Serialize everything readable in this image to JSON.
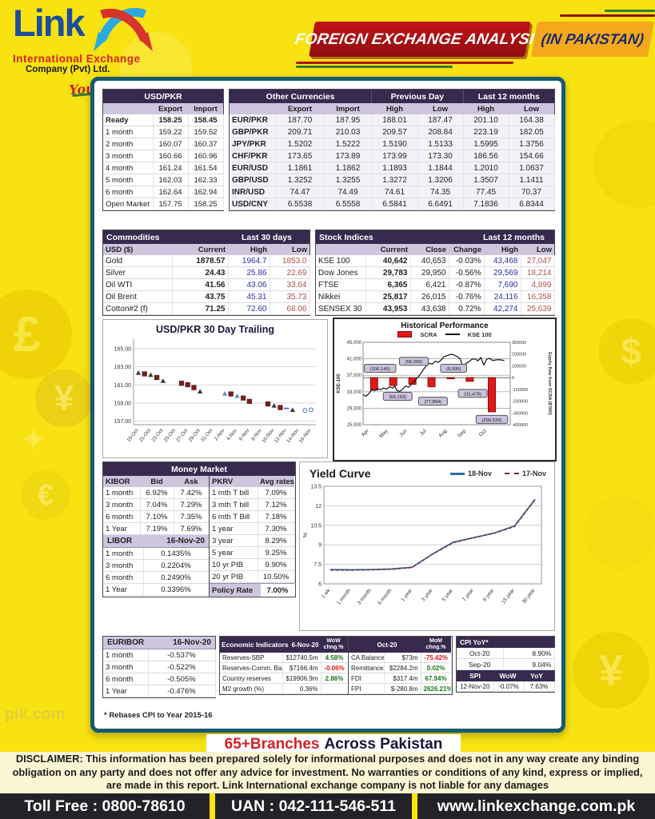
{
  "colors": {
    "yellow": "#F8E212",
    "purple": "#382A4E",
    "lavender": "#CEC5DF",
    "teal_border": "#175A70",
    "red_banner": "#A50F14",
    "orange_banner": "#F5A81C",
    "high_blue": "#2B31A5",
    "low_red": "#B0524B"
  },
  "logo": {
    "name": "Link",
    "line1": "International Exchange",
    "line2": "Company (Pvt) Ltd.",
    "tagline": "Your Money Matters"
  },
  "banner": {
    "title": "FOREIGN EXCHANGE ANALYSIS",
    "region": "(IN PAKISTAN)"
  },
  "fx": {
    "usdpkr": {
      "title": "USD/PKR",
      "cols": [
        "",
        "Export",
        "Import"
      ],
      "rows": [
        [
          "Ready",
          "158.25",
          "158.45"
        ],
        [
          "1 month",
          "159.22",
          "159.52"
        ],
        [
          "2 month",
          "160.07",
          "160.37"
        ],
        [
          "3 month",
          "160.66",
          "160.96"
        ],
        [
          "4 month",
          "161.24",
          "161.54"
        ],
        [
          "5 month",
          "162.03",
          "162.33"
        ],
        [
          "6 month",
          "162.64",
          "162.94"
        ],
        [
          "Open Market",
          "157.75",
          "158.25"
        ]
      ]
    },
    "others": {
      "title": "Other Currencies",
      "group2": "Previous Day",
      "group3": "Last 12 months",
      "cols": [
        "",
        "Export",
        "Import",
        "High",
        "Low",
        "High",
        "Low"
      ],
      "rows": [
        [
          "EUR/PKR",
          "187.70",
          "187.95",
          "188.01",
          "187.47",
          "201.10",
          "164.38"
        ],
        [
          "GBP/PKR",
          "209.71",
          "210.03",
          "209.57",
          "208.84",
          "223.19",
          "182.05"
        ],
        [
          "JPY/PKR",
          "1.5202",
          "1.5222",
          "1.5190",
          "1.5133",
          "1.5995",
          "1.3756"
        ],
        [
          "CHF/PKR",
          "173.65",
          "173.89",
          "173.99",
          "173.30",
          "186.56",
          "154.66"
        ],
        [
          "EUR/USD",
          "1.1861",
          "1.1862",
          "1.1893",
          "1.1844",
          "1.2010",
          "1.0637"
        ],
        [
          "GBP/USD",
          "1.3252",
          "1.3255",
          "1.3272",
          "1.3206",
          "1.3507",
          "1.1411"
        ],
        [
          "INR/USD",
          "74.47",
          "74.49",
          "74.61",
          "74.35",
          "77.45",
          "70.37"
        ],
        [
          "USD/CNY",
          "6.5538",
          "6.5558",
          "6.5841",
          "6.6491",
          "7.1836",
          "6.8344"
        ]
      ]
    }
  },
  "commodities": {
    "title": "Commodities",
    "range_label": "Last 30 days",
    "cols": [
      "USD ($)",
      "Current",
      "High",
      "Low"
    ],
    "rows": [
      [
        "Gold",
        "1878.57",
        "1964.7",
        "1853.0"
      ],
      [
        "Silver",
        "24.43",
        "25.86",
        "22.69"
      ],
      [
        "Oil WTI",
        "41.56",
        "43.06",
        "33.64"
      ],
      [
        "Oil Brent",
        "43.75",
        "45.31",
        "35.73"
      ],
      [
        "Cotton#2 (f)",
        "71.25",
        "72.60",
        "68.06"
      ]
    ]
  },
  "stocks": {
    "title": "Stock Indices",
    "range_label": "Last 12 months",
    "cols": [
      "",
      "Current",
      "Close",
      "Change",
      "High",
      "Low"
    ],
    "rows": [
      [
        "KSE 100",
        "40,642",
        "40,653",
        "-0.03%",
        "43,468",
        "27,047"
      ],
      [
        "Dow Jones",
        "29,783",
        "29,950",
        "-0.56%",
        "29,569",
        "18,214"
      ],
      [
        "FTSE",
        "6,365",
        "6,421",
        "-0.87%",
        "7,690",
        "4,899"
      ],
      [
        "Nikkei",
        "25,817",
        "26,015",
        "-0.76%",
        "24,116",
        "16,358"
      ],
      [
        "SENSEX 30",
        "43,953",
        "43,638",
        "0.72%",
        "42,274",
        "25,639"
      ]
    ]
  },
  "money_market": {
    "title": "Money Market",
    "kibor": {
      "cols": [
        "KIBOR",
        "Bid",
        "Ask"
      ],
      "rows": [
        [
          "1 month",
          "6.92%",
          "7.42%"
        ],
        [
          "3 month",
          "7.04%",
          "7.29%"
        ],
        [
          "6 month",
          "7.10%",
          "7.35%"
        ],
        [
          "1 Year",
          "7.19%",
          "7.69%"
        ]
      ]
    },
    "libor": {
      "label": "LIBOR",
      "date": "16-Nov-20",
      "rows": [
        [
          "1 month",
          "0.1435%"
        ],
        [
          "3 month",
          "0.2204%"
        ],
        [
          "6 month",
          "0.2490%"
        ],
        [
          "1 Year",
          "0.3396%"
        ]
      ]
    },
    "pkrv": {
      "cols": [
        "PKRV",
        "Avg rates"
      ],
      "rows": [
        [
          "1 mth T bill",
          "7.09%"
        ],
        [
          "3 mth T bill",
          "7.12%"
        ],
        [
          "6 mth T Bill",
          "7.18%"
        ],
        [
          "1 year",
          "7.30%"
        ],
        [
          "3 year",
          "8.29%"
        ],
        [
          "5 year",
          "9.25%"
        ],
        [
          "10 yr PIB",
          "9.90%"
        ],
        [
          "20 yr PIB",
          "10.50%"
        ]
      ],
      "policy_label": "Policy Rate",
      "policy_value": "7.00%"
    }
  },
  "euribor": {
    "label": "EURIBOR",
    "date": "16-Nov-20",
    "rows": [
      [
        "1 month",
        "-0.537%"
      ],
      [
        "3 month",
        "-0.522%"
      ],
      [
        "6 month",
        "-0.505%"
      ],
      [
        "1 Year",
        "-0.476%"
      ]
    ]
  },
  "econ": {
    "title": "Economic Indicators",
    "date": "6-Nov-20",
    "chg_hdr": "WoW chng.%",
    "rows": [
      [
        "Reserves-SBP",
        "$12740.5m",
        "4.58%"
      ],
      [
        "Reserves-Comm. Banks",
        "$7166.4m",
        "-0.06%"
      ],
      [
        "Country reserves",
        "$19906.9m",
        "2.86%"
      ],
      [
        "M2 growth (%)",
        "0.36%",
        ""
      ]
    ]
  },
  "external": {
    "date": "Oct-20",
    "chg_hdr": "MoM chng.%",
    "rows": [
      [
        "CA Balance",
        "$73m",
        "-75.42%"
      ],
      [
        "Remittances",
        "$2284.2m",
        "0.02%"
      ],
      [
        "FDI",
        "$317.4m",
        "67.94%"
      ],
      [
        "FPI",
        "$-280.8m",
        "2626.21%"
      ]
    ]
  },
  "cpi": {
    "title": "CPI YoY*",
    "rows": [
      [
        "Oct-20",
        "8.90%"
      ],
      [
        "Sep-20",
        "9.04%"
      ]
    ],
    "spi_cols": [
      "SPI",
      "WoW",
      "YoY"
    ],
    "spi_rows": [
      [
        "12-Nov-20",
        "-0.07%",
        "7.63%"
      ]
    ]
  },
  "footnote": "* Rebases CPI to Year 2015-16",
  "branches": {
    "highlight": "65+Branches",
    "rest": "Across Pakistan"
  },
  "disclaimer": {
    "label": "DISCLAIMER:",
    "text": "This information has been prepared solely for informational purposes and does not in any way create any binding obligation on any party and does not offer any advice for investment. No warranties or conditions of any kind, express or implied, are made in this report. Link International exchange company is not liable for any damages"
  },
  "footer": {
    "toll": "Toll Free : 0800-78610",
    "uan": "UAN : 042-111-546-511",
    "web": "www.linkexchange.com.pk"
  },
  "watermark": "pik.com",
  "chart_data": [
    {
      "id": "usdpkr_trailing",
      "type": "scatter",
      "title": "USD/PKR 30 Day Trailing",
      "ylim": [
        157,
        165
      ],
      "yticks": [
        "157.00",
        "159.00",
        "161.00",
        "163.00",
        "165.00"
      ],
      "x_tick_labels": [
        "19-Oct",
        "21-Oct",
        "23-Oct",
        "25-Oct",
        "27-Oct",
        "29-Oct",
        "31-Oct",
        "2-Nov",
        "4-Nov",
        "6-Nov",
        "8-Nov",
        "10-Nov",
        "12-Nov",
        "14-Nov",
        "16-Nov"
      ],
      "x_span_days": 29,
      "points": [
        [
          0,
          162.35,
          "tri"
        ],
        [
          1,
          162.22,
          "sq"
        ],
        [
          2,
          162.12,
          "tri"
        ],
        [
          3,
          161.82,
          "sq"
        ],
        [
          4,
          161.45,
          "tri"
        ],
        [
          7,
          161.18,
          "sq"
        ],
        [
          8,
          161.02,
          "sq"
        ],
        [
          9,
          160.7,
          "sq"
        ],
        [
          10,
          160.28,
          "tri"
        ],
        [
          14,
          160.05,
          "btri"
        ],
        [
          15,
          160.0,
          "sq"
        ],
        [
          16,
          159.78,
          "btri"
        ],
        [
          17,
          159.55,
          "sq"
        ],
        [
          18,
          159.18,
          "sq"
        ],
        [
          21,
          158.9,
          "sq"
        ],
        [
          22,
          158.72,
          "tri"
        ],
        [
          23,
          158.5,
          "sq"
        ],
        [
          24,
          158.4,
          "dash"
        ],
        [
          25,
          158.25,
          "tri"
        ],
        [
          27,
          158.18,
          "circ"
        ],
        [
          28,
          158.25,
          "circ"
        ]
      ]
    },
    {
      "id": "historical_performance",
      "type": "combo",
      "title": "Historical Performance",
      "legend": [
        {
          "label": "SCRA",
          "color": "#E21A1A"
        },
        {
          "label": "KSE 100",
          "color": "#111111"
        }
      ],
      "left_axis": {
        "label": "KSE-100",
        "lim": [
          25000,
          45000
        ],
        "ticks": [
          "25,000",
          "29,000",
          "33,000",
          "37,000",
          "41,000",
          "45,000"
        ]
      },
      "right_axis": {
        "label": "Equity flow from SCRA ($'000)",
        "lim": [
          -400000,
          300000
        ],
        "ticks": [
          "-400000",
          "-300000",
          "-200000",
          "-100000",
          "0",
          "100000",
          "200000",
          "300000"
        ]
      },
      "months": [
        "Apr",
        "May",
        "Jun",
        "Jul",
        "Aug",
        "Sep",
        "Oct"
      ],
      "month_fracs": [
        0.04,
        0.17,
        0.3,
        0.43,
        0.57,
        0.7,
        0.84
      ],
      "bars": {
        "fracs": [
          0.075,
          0.205,
          0.335,
          0.465,
          0.595,
          0.725,
          0.875
        ],
        "values": [
          -106145,
          -66153,
          -56356,
          -77894,
          -9500,
          -31478,
          -290539
        ],
        "labels": [
          "(106,145)",
          "(66,153)",
          "(56,356)",
          "(77,894)",
          "(9,500)",
          "(31,478)",
          "(290,539)"
        ]
      },
      "annotations": [
        {
          "text": "(106,145)",
          "fx": 0.115,
          "v": 38600
        },
        {
          "text": "(56,356)",
          "fx": 0.345,
          "v": 40300
        },
        {
          "text": "(9,500)",
          "fx": 0.615,
          "v": 38600
        },
        {
          "text": "(66,153)",
          "fx": 0.235,
          "v": 31800
        },
        {
          "text": "(77,894)",
          "fx": 0.475,
          "v": 30600
        },
        {
          "text": "(31,478)",
          "fx": 0.745,
          "v": 32500
        },
        {
          "text": "(290,539)",
          "fx": 0.875,
          "v": 26200
        }
      ],
      "kse_line": [
        [
          0,
          32300
        ],
        [
          0.02,
          31900
        ],
        [
          0.04,
          32600
        ],
        [
          0.06,
          33500
        ],
        [
          0.08,
          33300
        ],
        [
          0.1,
          33700
        ],
        [
          0.12,
          33500
        ],
        [
          0.14,
          33900
        ],
        [
          0.16,
          33600
        ],
        [
          0.18,
          34200
        ],
        [
          0.2,
          33900
        ],
        [
          0.215,
          34400
        ],
        [
          0.23,
          33300
        ],
        [
          0.25,
          33100
        ],
        [
          0.27,
          33700
        ],
        [
          0.29,
          34400
        ],
        [
          0.31,
          34100
        ],
        [
          0.33,
          34900
        ],
        [
          0.35,
          35600
        ],
        [
          0.37,
          36400
        ],
        [
          0.39,
          37300
        ],
        [
          0.41,
          38400
        ],
        [
          0.43,
          39300
        ],
        [
          0.45,
          39900
        ],
        [
          0.47,
          39700
        ],
        [
          0.49,
          40400
        ],
        [
          0.51,
          40100
        ],
        [
          0.53,
          40700
        ],
        [
          0.55,
          41500
        ],
        [
          0.58,
          41900
        ],
        [
          0.6,
          42100
        ],
        [
          0.62,
          41900
        ],
        [
          0.64,
          41500
        ],
        [
          0.66,
          41000
        ],
        [
          0.68,
          38900
        ],
        [
          0.7,
          39900
        ],
        [
          0.72,
          40300
        ],
        [
          0.74,
          40900
        ],
        [
          0.76,
          41000
        ],
        [
          0.78,
          40500
        ],
        [
          0.8,
          41300
        ],
        [
          0.82,
          39500
        ],
        [
          0.84,
          40900
        ],
        [
          0.86,
          41100
        ],
        [
          0.88,
          40600
        ],
        [
          0.92,
          40800
        ],
        [
          0.96,
          40600
        ]
      ]
    },
    {
      "id": "yield_curve",
      "type": "line",
      "title": "Yield Curve",
      "ylabel": "%",
      "ylim": [
        6,
        13.5
      ],
      "yticks": [
        "6",
        "7.5",
        "9",
        "10.5",
        "12",
        "13.5"
      ],
      "categories": [
        "1 wk",
        "1 month",
        "3 month",
        "6 month",
        "1 year",
        "3 year",
        "5 year",
        "7 year",
        "9 year",
        "15 year",
        "30 year"
      ],
      "series": [
        {
          "name": "18-Nov",
          "color": "#2E6DA4",
          "style": "solid",
          "values": [
            7.1,
            7.08,
            7.1,
            7.14,
            7.28,
            8.3,
            9.2,
            9.55,
            9.9,
            10.45,
            12.5
          ]
        },
        {
          "name": "17-Nov",
          "color": "#8B2020",
          "style": "dashed",
          "values": [
            7.05,
            7.04,
            7.07,
            7.11,
            7.25,
            8.28,
            9.15,
            9.55,
            9.88,
            10.4,
            12.45
          ]
        }
      ]
    }
  ]
}
